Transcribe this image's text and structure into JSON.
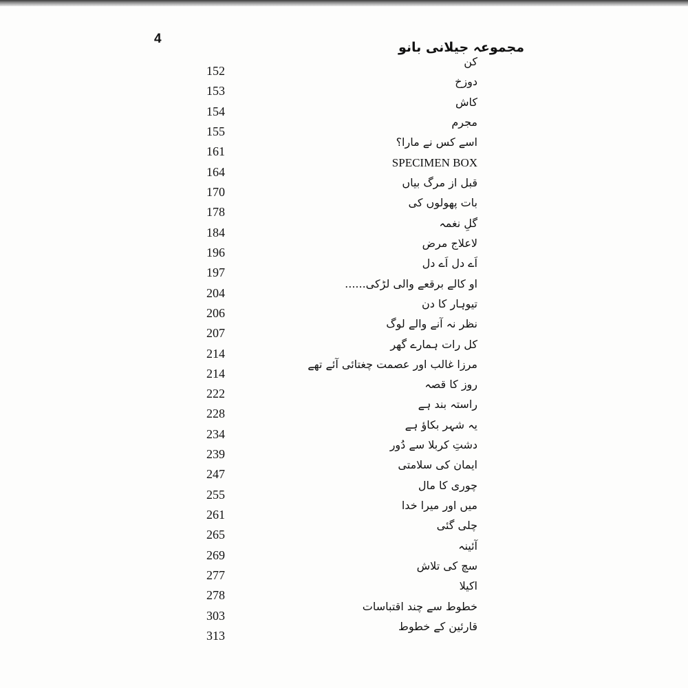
{
  "header": {
    "page_number": "4",
    "title": "مجموعہ جیلانی بانو"
  },
  "toc": [
    {
      "title": "کن",
      "page": "152"
    },
    {
      "title": "دوزخ",
      "page": "153"
    },
    {
      "title": "کاش",
      "page": "154"
    },
    {
      "title": "مجرم",
      "page": "155"
    },
    {
      "title": "اسے کس نے مارا؟",
      "page": "161"
    },
    {
      "title": "SPECIMEN BOX",
      "page": "164"
    },
    {
      "title": "قبل از مرگ بیاں",
      "page": "170"
    },
    {
      "title": "بات پھولوں کی",
      "page": "178"
    },
    {
      "title": "گلِ نغمہ",
      "page": "184"
    },
    {
      "title": "لاعلاج مرض",
      "page": "196"
    },
    {
      "title": "اَے دل اَے دل",
      "page": "197"
    },
    {
      "title": "او کالے برقعے والی لڑکی......",
      "page": "204"
    },
    {
      "title": "تیوہار کا دن",
      "page": "206"
    },
    {
      "title": "نظر نہ آنے والے لوگ",
      "page": "207"
    },
    {
      "title": "کل رات ہمارے گھر",
      "page": "214"
    },
    {
      "title": "مرزا غالب اور عصمت چغتائی آئے تھے",
      "page": "214"
    },
    {
      "title": "روز کا قصہ",
      "page": "222"
    },
    {
      "title": "راستہ بند ہے",
      "page": "228"
    },
    {
      "title": "یہ شہر بکاؤ ہے",
      "page": "234"
    },
    {
      "title": "دشتِ کربلا سے دُور",
      "page": "239"
    },
    {
      "title": "ایمان کی سلامتی",
      "page": "247"
    },
    {
      "title": "چوری کا مال",
      "page": "255"
    },
    {
      "title": "میں اور میرا خدا",
      "page": "261"
    },
    {
      "title": "چلی گئی",
      "page": "265"
    },
    {
      "title": "آئینہ",
      "page": "269"
    },
    {
      "title": "سچ کی تلاش",
      "page": "277"
    },
    {
      "title": "اکیلا",
      "page": "278"
    },
    {
      "title": "خطوط سے چند اقتباسات",
      "page": "303"
    },
    {
      "title": "قارئین کے خطوط",
      "page": "313"
    }
  ]
}
